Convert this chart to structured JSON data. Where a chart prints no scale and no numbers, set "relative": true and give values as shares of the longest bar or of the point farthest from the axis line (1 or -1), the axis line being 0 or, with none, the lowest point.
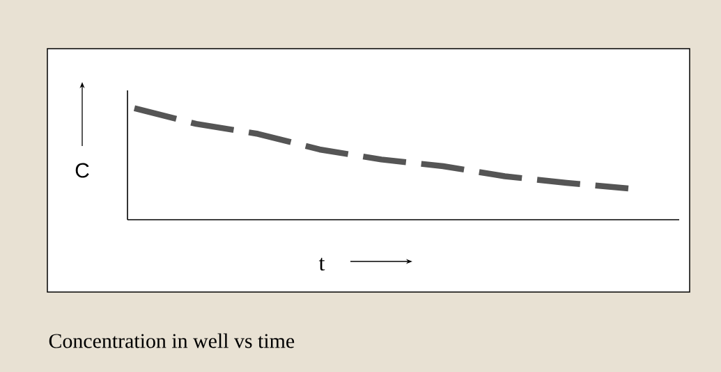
{
  "chart_data": {
    "type": "line",
    "relative": true,
    "title": "Concentration in well vs time",
    "xlabel": "t",
    "ylabel": "C",
    "categories": [
      null,
      null,
      null,
      null,
      null,
      null,
      null,
      null,
      null
    ],
    "series": [
      {
        "color": "#555555",
        "values": [
          1,
          0.86,
          0.77,
          0.63,
          0.54,
          0.48,
          0.39,
          0.33,
          0.28
        ]
      }
    ],
    "line_style": "dashed"
  }
}
